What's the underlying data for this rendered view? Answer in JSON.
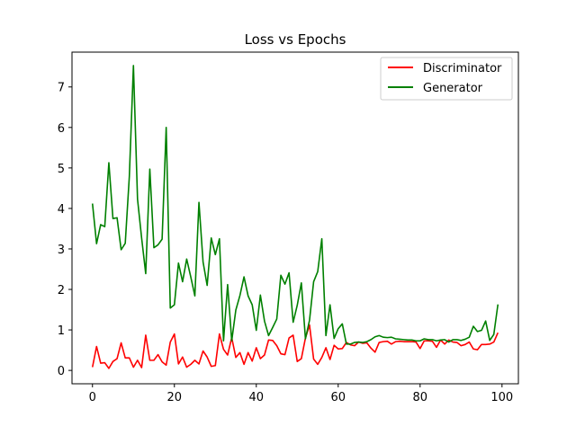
{
  "chart_data": {
    "type": "line",
    "title": "Loss vs Epochs",
    "xlabel": "",
    "ylabel": "",
    "xlim": [
      -5,
      104
    ],
    "ylim": [
      -0.33,
      7.86
    ],
    "xticks": [
      0,
      20,
      40,
      60,
      80,
      100
    ],
    "yticks": [
      0,
      1,
      2,
      3,
      4,
      5,
      6,
      7
    ],
    "grid": false,
    "legend_position": "top-right",
    "series": [
      {
        "name": "Discriminator",
        "color": "#ff0000",
        "x": [
          0,
          1,
          2,
          3,
          4,
          5,
          6,
          7,
          8,
          9,
          10,
          11,
          12,
          13,
          14,
          15,
          16,
          17,
          18,
          19,
          20,
          21,
          22,
          23,
          24,
          25,
          26,
          27,
          28,
          29,
          30,
          31,
          32,
          33,
          34,
          35,
          36,
          37,
          38,
          39,
          40,
          41,
          42,
          43,
          44,
          45,
          46,
          47,
          48,
          49,
          50,
          51,
          52,
          53,
          54,
          55,
          56,
          57,
          58,
          59,
          60,
          61,
          62,
          63,
          64,
          65,
          66,
          67,
          68,
          69,
          70,
          71,
          72,
          73,
          74,
          75,
          76,
          77,
          78,
          79,
          80,
          81,
          82,
          83,
          84,
          85,
          86,
          87,
          88,
          89,
          90,
          91,
          92,
          93,
          94,
          95,
          96,
          97,
          98,
          99
        ],
        "values": [
          0.08,
          0.59,
          0.18,
          0.19,
          0.05,
          0.22,
          0.29,
          0.68,
          0.31,
          0.31,
          0.08,
          0.25,
          0.07,
          0.87,
          0.25,
          0.25,
          0.39,
          0.21,
          0.13,
          0.7,
          0.9,
          0.16,
          0.33,
          0.08,
          0.15,
          0.25,
          0.16,
          0.48,
          0.33,
          0.1,
          0.12,
          0.9,
          0.52,
          0.38,
          0.81,
          0.32,
          0.44,
          0.15,
          0.44,
          0.23,
          0.56,
          0.29,
          0.38,
          0.75,
          0.74,
          0.61,
          0.41,
          0.39,
          0.8,
          0.87,
          0.22,
          0.29,
          0.8,
          1.12,
          0.28,
          0.15,
          0.32,
          0.56,
          0.27,
          0.62,
          0.53,
          0.54,
          0.69,
          0.63,
          0.61,
          0.7,
          0.67,
          0.68,
          0.55,
          0.45,
          0.69,
          0.71,
          0.72,
          0.65,
          0.71,
          0.72,
          0.71,
          0.71,
          0.71,
          0.7,
          0.54,
          0.73,
          0.73,
          0.72,
          0.57,
          0.75,
          0.65,
          0.75,
          0.7,
          0.69,
          0.61,
          0.64,
          0.7,
          0.53,
          0.51,
          0.64,
          0.64,
          0.65,
          0.7,
          0.93
        ]
      },
      {
        "name": "Generator",
        "color": "#008000",
        "x": [
          0,
          1,
          2,
          3,
          4,
          5,
          6,
          7,
          8,
          9,
          10,
          11,
          12,
          13,
          14,
          15,
          16,
          17,
          18,
          19,
          20,
          21,
          22,
          23,
          24,
          25,
          26,
          27,
          28,
          29,
          30,
          31,
          32,
          33,
          34,
          35,
          36,
          37,
          38,
          39,
          40,
          41,
          42,
          43,
          44,
          45,
          46,
          47,
          48,
          49,
          50,
          51,
          52,
          53,
          54,
          55,
          56,
          57,
          58,
          59,
          60,
          61,
          62,
          63,
          64,
          65,
          66,
          67,
          68,
          69,
          70,
          71,
          72,
          73,
          74,
          75,
          76,
          77,
          78,
          79,
          80,
          81,
          82,
          83,
          84,
          85,
          86,
          87,
          88,
          89,
          90,
          91,
          92,
          93,
          94,
          95,
          96,
          97,
          98,
          99
        ],
        "values": [
          4.12,
          3.13,
          3.6,
          3.55,
          5.13,
          3.75,
          3.77,
          2.98,
          3.14,
          4.79,
          7.53,
          4.23,
          3.27,
          2.39,
          4.97,
          3.03,
          3.1,
          3.24,
          6.0,
          1.54,
          1.62,
          2.65,
          2.19,
          2.75,
          2.31,
          1.84,
          4.15,
          2.68,
          2.1,
          3.27,
          2.86,
          3.25,
          0.73,
          2.12,
          0.73,
          1.49,
          1.85,
          2.31,
          1.84,
          1.62,
          0.99,
          1.86,
          1.22,
          0.86,
          1.06,
          1.27,
          2.35,
          2.13,
          2.41,
          1.19,
          1.61,
          2.16,
          0.78,
          1.24,
          2.19,
          2.44,
          3.25,
          0.86,
          1.62,
          0.79,
          1.03,
          1.15,
          0.65,
          0.65,
          0.69,
          0.7,
          0.69,
          0.71,
          0.76,
          0.83,
          0.86,
          0.82,
          0.81,
          0.82,
          0.78,
          0.77,
          0.76,
          0.75,
          0.75,
          0.73,
          0.73,
          0.78,
          0.76,
          0.76,
          0.73,
          0.75,
          0.76,
          0.7,
          0.76,
          0.76,
          0.74,
          0.77,
          0.82,
          1.09,
          0.96,
          0.99,
          1.22,
          0.74,
          0.89,
          1.63
        ]
      }
    ]
  }
}
